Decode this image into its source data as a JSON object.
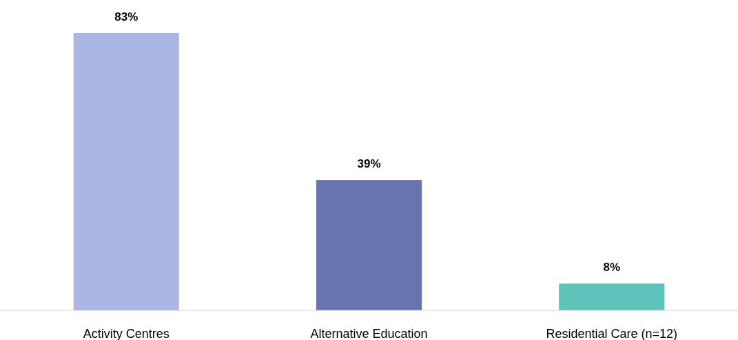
{
  "chart_data": {
    "type": "bar",
    "categories": [
      "Activity Centres",
      "Alternative Education",
      "Residential Care (n=12)"
    ],
    "values": [
      83,
      39,
      8
    ],
    "colors": [
      "#abb6e4",
      "#6874b0",
      "#5ec4bb"
    ],
    "value_labels": [
      "83%",
      "39%",
      "8%"
    ]
  }
}
